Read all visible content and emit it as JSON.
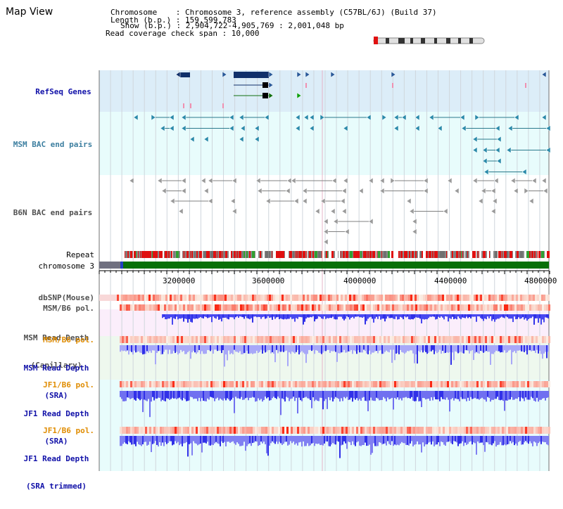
{
  "view_title": "Map View",
  "header": {
    "line1": "Chromosome    : Chromosome 3, reference assembly (C57BL/6J) (Build 37)",
    "line2": "Length (b.p.) : 159,599,783",
    "line3": "Show (b.p.) : 2,904,722-4,905,769 : 2,001,048 bp",
    "line4": "Read coverage check span : 10,000"
  },
  "tracks": {
    "refseq": "RefSeq Genes",
    "msm_bac": "MSM BAC end pairs",
    "b6n_bac": "B6N BAC end pairs",
    "repeat": "Repeat",
    "chromosome": "chromosome 3",
    "dbsnp": "dbSNP(Mouse)",
    "msm_b6_pol_1": "MSM/B6 pol.",
    "msm_read_depth_cap_1": "MSM Read Depth",
    "msm_read_depth_cap_2": "(Capillary)",
    "msm_b6_pol_2": "MSM/B6 pol.",
    "msm_read_depth_sra_1": "MSM Read Depth",
    "msm_read_depth_sra_2": "(SRA)",
    "jf1_b6_pol_1": "JF1/B6 pol.",
    "jf1_read_depth_sra_1": "JF1 Read Depth",
    "jf1_read_depth_sra_2": "(SRA)",
    "jf1_b6_pol_2": "JF1/B6 pol.",
    "jf1_read_depth_trim_1": "JF1 Read Depth",
    "jf1_read_depth_trim_2": "(SRA trimmed)"
  },
  "axis": {
    "ticks": [
      "3200000",
      "3600000",
      "4000000",
      "4400000",
      "4800000"
    ]
  },
  "colors": {
    "refseq_bg": "#dcedf8",
    "bac_bg": "#e8fcfc",
    "msm_label": "#3d7fa0",
    "navy_label": "#1010a8",
    "orange_label": "#e08c00",
    "gray_label": "#505050",
    "depth_blue": "#5050f0",
    "gene_navy": "#10306a",
    "chrom_green": "#087008"
  }
}
